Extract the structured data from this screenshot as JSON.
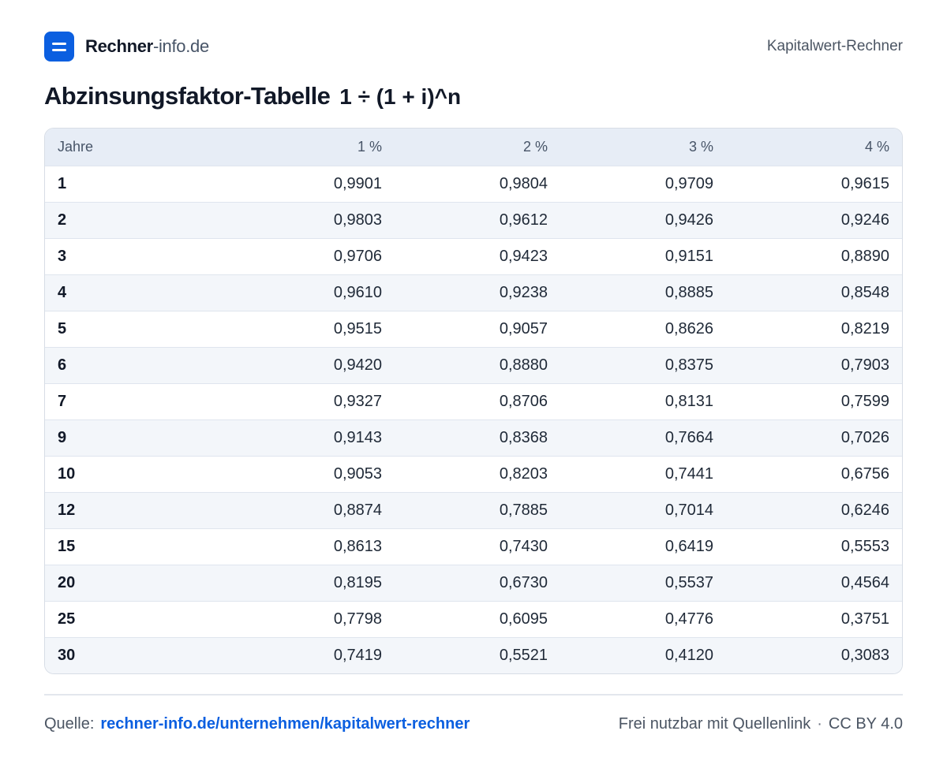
{
  "brand": {
    "name_bold": "Rechner",
    "name_light": "-info.de"
  },
  "header": {
    "right_label": "Kapitalwert-Rechner"
  },
  "title": {
    "text": "Abzinsungsfaktor-Tabelle",
    "formula": "1 ÷ (1 + i)^n"
  },
  "table": {
    "columns": [
      "Jahre",
      "1 %",
      "2 %",
      "3 %",
      "4 %"
    ],
    "rows": [
      [
        "1",
        "0,9901",
        "0,9804",
        "0,9709",
        "0,9615"
      ],
      [
        "2",
        "0,9803",
        "0,9612",
        "0,9426",
        "0,9246"
      ],
      [
        "3",
        "0,9706",
        "0,9423",
        "0,9151",
        "0,8890"
      ],
      [
        "4",
        "0,9610",
        "0,9238",
        "0,8885",
        "0,8548"
      ],
      [
        "5",
        "0,9515",
        "0,9057",
        "0,8626",
        "0,8219"
      ],
      [
        "6",
        "0,9420",
        "0,8880",
        "0,8375",
        "0,7903"
      ],
      [
        "7",
        "0,9327",
        "0,8706",
        "0,8131",
        "0,7599"
      ],
      [
        "9",
        "0,9143",
        "0,8368",
        "0,7664",
        "0,7026"
      ],
      [
        "10",
        "0,9053",
        "0,8203",
        "0,7441",
        "0,6756"
      ],
      [
        "12",
        "0,8874",
        "0,7885",
        "0,7014",
        "0,6246"
      ],
      [
        "15",
        "0,8613",
        "0,7430",
        "0,6419",
        "0,5553"
      ],
      [
        "20",
        "0,8195",
        "0,6730",
        "0,5537",
        "0,4564"
      ],
      [
        "25",
        "0,7798",
        "0,6095",
        "0,4776",
        "0,3751"
      ],
      [
        "30",
        "0,7419",
        "0,5521",
        "0,4120",
        "0,3083"
      ]
    ]
  },
  "footer": {
    "source_label": "Quelle:",
    "source_link": "rechner-info.de/unternehmen/kapitalwert-rechner",
    "license_text": "Frei nutzbar mit Quellenlink",
    "separator": "·",
    "license_name": "CC BY 4.0"
  },
  "colors": {
    "accent": "#0b5fe0",
    "header_bg": "#e7edf6",
    "stripe_bg": "#f3f6fa"
  }
}
